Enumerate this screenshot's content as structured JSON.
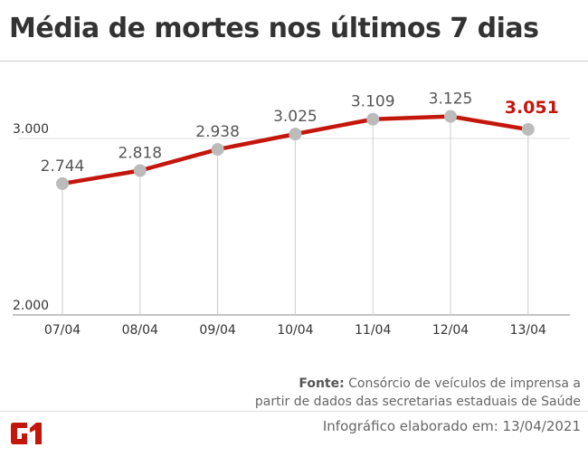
{
  "title": "Média de mortes nos últimos 7 dias",
  "footer": {
    "source_label": "Fonte:",
    "source_text": " Consórcio de veículos de imprensa a",
    "source_text2": "partir de dados das secretarias estaduais de Saúde",
    "credit": "Infográfico elaborado em: 13/04/2021",
    "logo": "G1"
  },
  "colors": {
    "line": "#c4170c",
    "point": "#bbbbbb",
    "highlight": "#c4170c"
  },
  "chart_data": {
    "type": "line",
    "categories": [
      "07/04",
      "08/04",
      "09/04",
      "10/04",
      "11/04",
      "12/04",
      "13/04"
    ],
    "values": [
      2744,
      2818,
      2938,
      3025,
      3109,
      3125,
      3051
    ],
    "data_labels": [
      "2.744",
      "2.818",
      "2.938",
      "3.025",
      "3.109",
      "3.125",
      "3.051"
    ],
    "yticks": [
      {
        "value": 2000,
        "label": "2.000"
      },
      {
        "value": 3000,
        "label": "3.000"
      }
    ],
    "ylim": [
      2000,
      3250
    ],
    "highlight_last": true
  }
}
